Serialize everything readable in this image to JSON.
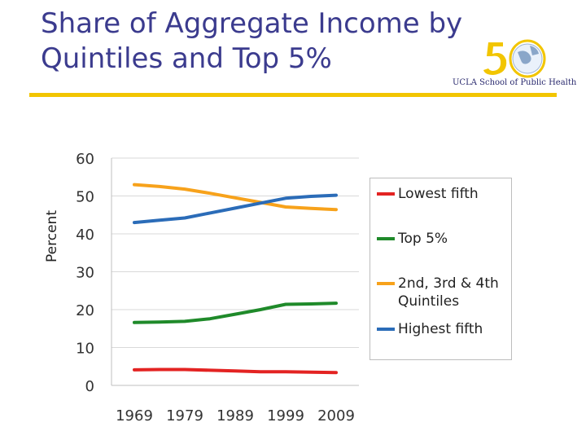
{
  "slide": {
    "title_line1": "Share of Aggregate Income by",
    "title_line2": "Quintiles and Top 5%",
    "logo_text": "UCLA School of Public Health",
    "accent_color": "#f2c500",
    "title_color": "#3b3b8e"
  },
  "chart_data": {
    "type": "line",
    "title": "",
    "xlabel": "",
    "ylabel": "Percent",
    "categories": [
      "1969",
      "1979",
      "1989",
      "1999",
      "2009"
    ],
    "x": [
      1969,
      1974,
      1979,
      1984,
      1989,
      1994,
      1999,
      2004,
      2009
    ],
    "ylim": [
      0,
      60
    ],
    "yticks": [
      0,
      10,
      20,
      30,
      40,
      50,
      60
    ],
    "xticks": [
      1969,
      1979,
      1989,
      1999,
      2009
    ],
    "grid": true,
    "legend_position": "right",
    "series": [
      {
        "name": "Lowest fifth",
        "color": "#e32322",
        "values": [
          4.1,
          4.2,
          4.2,
          4.0,
          3.8,
          3.6,
          3.6,
          3.5,
          3.4
        ]
      },
      {
        "name": "Top 5%",
        "color": "#1f8a2a",
        "values": [
          16.6,
          16.7,
          16.9,
          17.6,
          18.8,
          20.0,
          21.4,
          21.5,
          21.7
        ]
      },
      {
        "name": "2nd, 3rd & 4th Quintiles",
        "color": "#f7a21b",
        "values": [
          53.0,
          52.5,
          51.8,
          50.7,
          49.5,
          48.3,
          47.1,
          46.7,
          46.4
        ]
      },
      {
        "name": "Highest fifth",
        "color": "#2b6cb8",
        "values": [
          43.0,
          43.6,
          44.2,
          45.5,
          46.8,
          48.1,
          49.4,
          49.9,
          50.2
        ]
      }
    ]
  }
}
